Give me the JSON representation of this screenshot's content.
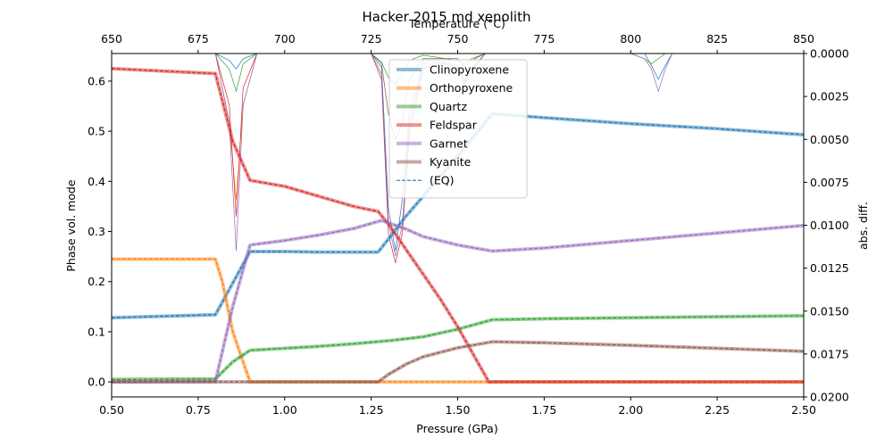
{
  "chart_data": {
    "type": "line",
    "title": "Hacker 2015 md xenolith",
    "xlabel": "Pressure (GPa)",
    "ylabel": "Phase vol. mode",
    "top_xlabel": "Temperature (°C)",
    "right_ylabel": "abs. diff.",
    "xlim": [
      0.5,
      2.5
    ],
    "ylim": [
      -0.03,
      0.655
    ],
    "top_xlim": [
      650,
      850
    ],
    "right_ylim": [
      0.0,
      0.02
    ],
    "right_axis_inverted": true,
    "x_ticks": [
      "0.50",
      "0.75",
      "1.00",
      "1.25",
      "1.50",
      "1.75",
      "2.00",
      "2.25",
      "2.50"
    ],
    "y_ticks": [
      "0.0",
      "0.1",
      "0.2",
      "0.3",
      "0.4",
      "0.5",
      "0.6"
    ],
    "top_x_ticks": [
      "650",
      "675",
      "700",
      "725",
      "750",
      "775",
      "800",
      "825",
      "850"
    ],
    "right_y_ticks": [
      "0.0000",
      "0.0025",
      "0.0050",
      "0.0075",
      "0.0100",
      "0.0125",
      "0.0150",
      "0.0175",
      "0.0200"
    ],
    "legend_position": "upper-center",
    "series": [
      {
        "name": "Clinopyroxene",
        "color": "#1f77b4",
        "x": [
          0.5,
          0.8,
          0.9,
          1.0,
          1.1,
          1.2,
          1.27,
          1.3,
          1.35,
          1.4,
          1.5,
          1.6,
          1.75,
          2.0,
          2.25,
          2.5
        ],
        "y": [
          0.128,
          0.134,
          0.26,
          0.26,
          0.259,
          0.259,
          0.259,
          0.285,
          0.33,
          0.37,
          0.45,
          0.535,
          0.527,
          0.515,
          0.505,
          0.493
        ]
      },
      {
        "name": "Orthopyroxene",
        "color": "#ff7f0e",
        "x": [
          0.5,
          0.8,
          0.82,
          0.85,
          0.9,
          2.5
        ],
        "y": [
          0.245,
          0.245,
          0.2,
          0.1,
          0.0,
          0.0
        ]
      },
      {
        "name": "Quartz",
        "color": "#2ca02c",
        "x": [
          0.5,
          0.8,
          0.85,
          0.9,
          1.0,
          1.1,
          1.2,
          1.3,
          1.4,
          1.5,
          1.6,
          1.75,
          2.0,
          2.25,
          2.5
        ],
        "y": [
          0.005,
          0.006,
          0.04,
          0.063,
          0.067,
          0.071,
          0.076,
          0.082,
          0.09,
          0.105,
          0.124,
          0.126,
          0.128,
          0.13,
          0.132
        ]
      },
      {
        "name": "Feldspar",
        "color": "#d62728",
        "x": [
          0.5,
          0.8,
          0.85,
          0.9,
          1.0,
          1.1,
          1.2,
          1.27,
          1.3,
          1.35,
          1.4,
          1.45,
          1.5,
          1.59,
          2.5
        ],
        "y": [
          0.625,
          0.615,
          0.48,
          0.402,
          0.39,
          0.37,
          0.35,
          0.34,
          0.315,
          0.265,
          0.215,
          0.165,
          0.11,
          0.0,
          0.0
        ]
      },
      {
        "name": "Garnet",
        "color": "#9467bd",
        "x": [
          0.5,
          0.8,
          0.85,
          0.9,
          1.0,
          1.1,
          1.2,
          1.28,
          1.35,
          1.4,
          1.5,
          1.6,
          1.75,
          2.0,
          2.25,
          2.5
        ],
        "y": [
          0.0,
          0.001,
          0.15,
          0.273,
          0.282,
          0.293,
          0.306,
          0.322,
          0.305,
          0.29,
          0.273,
          0.261,
          0.267,
          0.282,
          0.297,
          0.312
        ]
      },
      {
        "name": "Kyanite",
        "color": "#8c564b",
        "x": [
          0.5,
          1.27,
          1.3,
          1.35,
          1.4,
          1.5,
          1.6,
          1.75,
          2.0,
          2.25,
          2.5
        ],
        "y": [
          0.0,
          0.0,
          0.015,
          0.035,
          0.05,
          0.068,
          0.08,
          0.078,
          0.073,
          0.067,
          0.061
        ]
      }
    ],
    "eq_series": {
      "name": "(EQ)",
      "style": "dashed"
    },
    "abs_diff_series": [
      {
        "color": "#1f77b4",
        "x": [
          0.5,
          0.8,
          0.84,
          0.86,
          0.88,
          0.92,
          1.25,
          1.28,
          1.3,
          1.32,
          1.34,
          1.36,
          1.4,
          1.46,
          1.5,
          1.52,
          1.54,
          1.58,
          2.0,
          2.04,
          2.06,
          2.08,
          2.1,
          2.12,
          2.5
        ],
        "y": [
          0.0,
          0.0,
          0.0004,
          0.0009,
          0.0003,
          0.0,
          0.0,
          0.0008,
          0.009,
          0.0115,
          0.0085,
          0.0036,
          0.0006,
          0.0005,
          0.0008,
          0.0018,
          0.001,
          0.0,
          0.0,
          0.0,
          0.0007,
          0.0015,
          0.0007,
          0.0,
          0.0
        ]
      },
      {
        "color": "#ff7f0e",
        "x": [
          0.5,
          0.8,
          0.84,
          0.86,
          0.88,
          0.92,
          2.5
        ],
        "y": [
          0.0,
          0.0,
          0.004,
          0.0085,
          0.003,
          0.0,
          0.0
        ]
      },
      {
        "color": "#2ca02c",
        "x": [
          0.5,
          0.8,
          0.84,
          0.86,
          0.88,
          0.92,
          1.25,
          1.28,
          1.3,
          1.32,
          1.34,
          1.36,
          1.4,
          1.5,
          1.52,
          1.54,
          1.58,
          2.0,
          2.04,
          2.06,
          2.08,
          2.1,
          2.12,
          2.5
        ],
        "y": [
          0.0,
          0.0,
          0.0009,
          0.0022,
          0.0006,
          0.0,
          0.0,
          0.0005,
          0.0014,
          0.0018,
          0.0012,
          0.0004,
          0.0001,
          0.0004,
          0.0006,
          0.0003,
          0.0,
          0.0,
          0.0003,
          0.0006,
          0.0003,
          0.0,
          0.0,
          0.0
        ]
      },
      {
        "color": "#d62728",
        "x": [
          0.5,
          0.8,
          0.84,
          0.86,
          0.88,
          0.92,
          1.25,
          1.28,
          1.3,
          1.32,
          1.34,
          1.36,
          1.4,
          1.46,
          1.5,
          1.52,
          1.54,
          1.58,
          2.5
        ],
        "y": [
          0.0,
          0.0,
          0.003,
          0.0095,
          0.002,
          0.0,
          0.0,
          0.0015,
          0.0105,
          0.0122,
          0.0105,
          0.0048,
          0.0009,
          0.0006,
          0.0009,
          0.0017,
          0.0009,
          0.0,
          0.0
        ]
      },
      {
        "color": "#9467bd",
        "x": [
          0.5,
          0.8,
          0.84,
          0.86,
          0.88,
          0.92,
          1.25,
          1.28,
          1.3,
          1.32,
          1.34,
          1.36,
          1.4,
          1.46,
          1.5,
          1.52,
          1.54,
          1.58,
          2.0,
          2.04,
          2.06,
          2.08,
          2.1,
          2.12,
          2.5
        ],
        "y": [
          0.0,
          0.0,
          0.004,
          0.0115,
          0.003,
          0.0,
          0.0,
          0.0012,
          0.0098,
          0.0118,
          0.01,
          0.0042,
          0.0008,
          0.0005,
          0.0007,
          0.0016,
          0.0009,
          0.0,
          0.0,
          0.0003,
          0.0009,
          0.0022,
          0.0009,
          0.0,
          0.0
        ]
      },
      {
        "color": "#8c564b",
        "x": [
          0.5,
          1.25,
          1.28,
          1.3,
          1.32,
          1.34,
          1.36,
          1.4,
          1.5,
          1.52,
          1.54,
          1.58,
          2.5
        ],
        "y": [
          0.0,
          0.0,
          0.0006,
          0.0035,
          0.005,
          0.004,
          0.0015,
          0.0003,
          0.0003,
          0.0008,
          0.0004,
          0.0,
          0.0
        ]
      }
    ]
  }
}
